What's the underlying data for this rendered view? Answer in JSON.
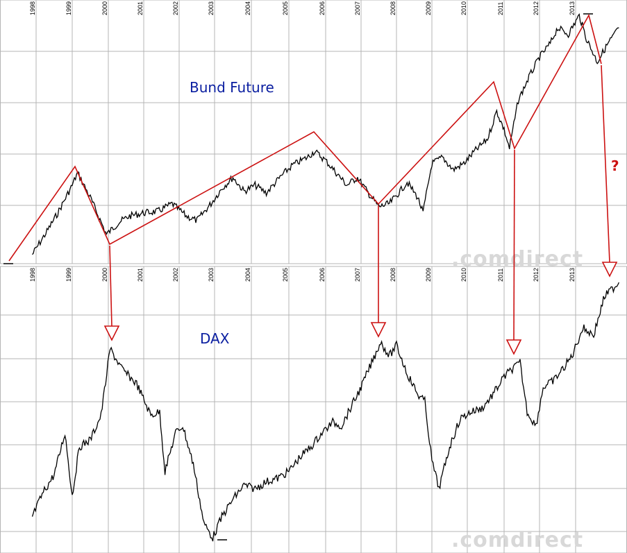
{
  "chart_data": [
    {
      "type": "line",
      "title": "Bund Future",
      "x_ticks": [
        "1998",
        "1999",
        "2000",
        "2001",
        "2002",
        "2003",
        "2004",
        "2005",
        "2006",
        "2007",
        "2008",
        "2009",
        "2010",
        "2011",
        "2012",
        "2013"
      ],
      "watermark": ".comdirect",
      "grid": true,
      "series": [
        {
          "x": [
            1997.9,
            1998.3,
            1998.6,
            1999.0,
            1999.15,
            1999.5,
            1999.95,
            2000.3,
            2000.6,
            2001.0,
            2001.4,
            2001.8,
            2002.2,
            2002.5,
            2002.9,
            2003.2,
            2003.5,
            2003.8,
            2004.1,
            2004.4,
            2004.8,
            2005.1,
            2005.5,
            2005.7,
            2006.0,
            2006.3,
            2006.6,
            2006.9,
            2007.2,
            2007.5,
            2007.8,
            2008.1,
            2008.3,
            2008.6,
            2008.75,
            2009.0,
            2009.3,
            2009.6,
            2009.9,
            2010.2,
            2010.55,
            2010.8,
            2011.0,
            2011.15,
            2011.4,
            2011.7,
            2012.0,
            2012.3,
            2012.5,
            2012.8,
            2013.1,
            2013.3,
            2013.6,
            2013.9,
            2014.2
          ],
          "values": [
            0.05,
            0.2,
            0.32,
            0.5,
            0.58,
            0.42,
            0.18,
            0.26,
            0.3,
            0.32,
            0.33,
            0.38,
            0.3,
            0.27,
            0.38,
            0.48,
            0.55,
            0.46,
            0.5,
            0.45,
            0.56,
            0.63,
            0.68,
            0.72,
            0.66,
            0.58,
            0.5,
            0.55,
            0.45,
            0.36,
            0.38,
            0.46,
            0.52,
            0.42,
            0.32,
            0.64,
            0.68,
            0.6,
            0.64,
            0.72,
            0.8,
            0.98,
            0.86,
            0.74,
            1.05,
            1.2,
            1.33,
            1.42,
            1.52,
            1.48,
            1.6,
            1.45,
            1.3,
            1.42,
            1.52
          ]
        }
      ]
    },
    {
      "type": "line",
      "title": "DAX",
      "x_ticks": [
        "1998",
        "1999",
        "2000",
        "2001",
        "2002",
        "2003",
        "2004",
        "2005",
        "2006",
        "2007",
        "2008",
        "2009",
        "2010",
        "2011",
        "2012",
        "2013"
      ],
      "watermark": ".comdirect",
      "grid": true,
      "series": [
        {
          "x": [
            1997.9,
            1998.2,
            1998.5,
            1998.8,
            1999.0,
            1999.2,
            1999.5,
            1999.8,
            2000.05,
            2000.4,
            2000.8,
            2001.2,
            2001.45,
            2001.6,
            2001.9,
            2002.1,
            2002.4,
            2002.7,
            2002.95,
            2003.2,
            2003.5,
            2003.8,
            2004.1,
            2004.4,
            2004.7,
            2005.0,
            2005.3,
            2005.6,
            2005.9,
            2006.2,
            2006.45,
            2006.7,
            2007.0,
            2007.3,
            2007.55,
            2007.8,
            2008.0,
            2008.3,
            2008.6,
            2008.8,
            2009.0,
            2009.2,
            2009.5,
            2009.8,
            2010.1,
            2010.4,
            2010.7,
            2011.0,
            2011.2,
            2011.45,
            2011.65,
            2011.9,
            2012.1,
            2012.4,
            2012.7,
            2012.9,
            2013.2,
            2013.5,
            2013.8,
            2014.2
          ],
          "values": [
            3000,
            3700,
            4200,
            5400,
            3600,
            5000,
            5200,
            5900,
            7800,
            7200,
            6800,
            5900,
            6000,
            4300,
            5400,
            5600,
            4500,
            2800,
            2400,
            3000,
            3500,
            3900,
            3800,
            4000,
            4100,
            4300,
            4700,
            5000,
            5400,
            5700,
            5600,
            6100,
            6700,
            7400,
            8000,
            7600,
            7900,
            7100,
            6500,
            6300,
            4600,
            3800,
            5000,
            5800,
            6000,
            6100,
            6500,
            7000,
            7200,
            7400,
            6000,
            5600,
            6700,
            6900,
            7300,
            7600,
            8400,
            8200,
            9300,
            9700
          ]
        }
      ]
    }
  ],
  "annotations": {
    "question_mark": "?"
  },
  "colors": {
    "price_line": "#000000",
    "annotation": "#cc1111",
    "title": "#0a1ea0",
    "grid": "#b4b4b4",
    "watermark": "#d8d8d8"
  }
}
